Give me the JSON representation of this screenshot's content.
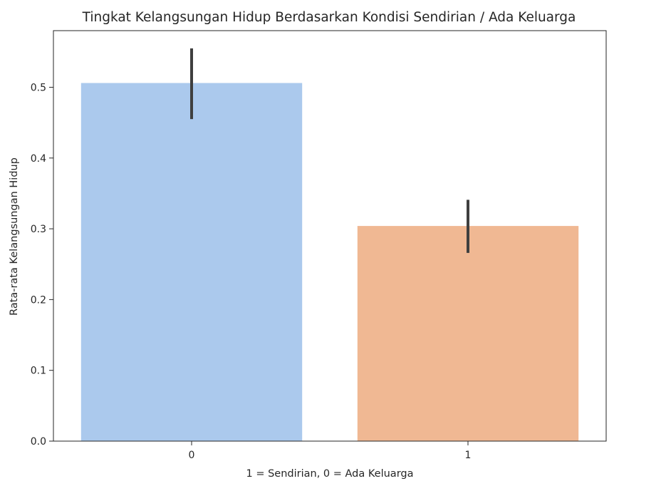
{
  "chart_data": {
    "type": "bar",
    "title": "Tingkat Kelangsungan Hidup Berdasarkan Kondisi Sendirian / Ada Keluarga",
    "xlabel": "1 = Sendirian, 0 = Ada Keluarga",
    "ylabel": "Rata-rata Kelangsungan Hidup",
    "categories": [
      "0",
      "1"
    ],
    "values": [
      0.506,
      0.304
    ],
    "error_bars": [
      {
        "low": 0.455,
        "high": 0.555
      },
      {
        "low": 0.266,
        "high": 0.341
      }
    ],
    "colors": [
      "#abc9ed",
      "#f0b893"
    ],
    "error_bar_color": "#3f3f3f",
    "ylim": [
      0,
      0.58
    ],
    "yticks": [
      0.0,
      0.1,
      0.2,
      0.3,
      0.4,
      0.5
    ],
    "ytick_labels": [
      "0.0",
      "0.1",
      "0.2",
      "0.3",
      "0.4",
      "0.5"
    ],
    "grid": false,
    "legend": "none"
  }
}
